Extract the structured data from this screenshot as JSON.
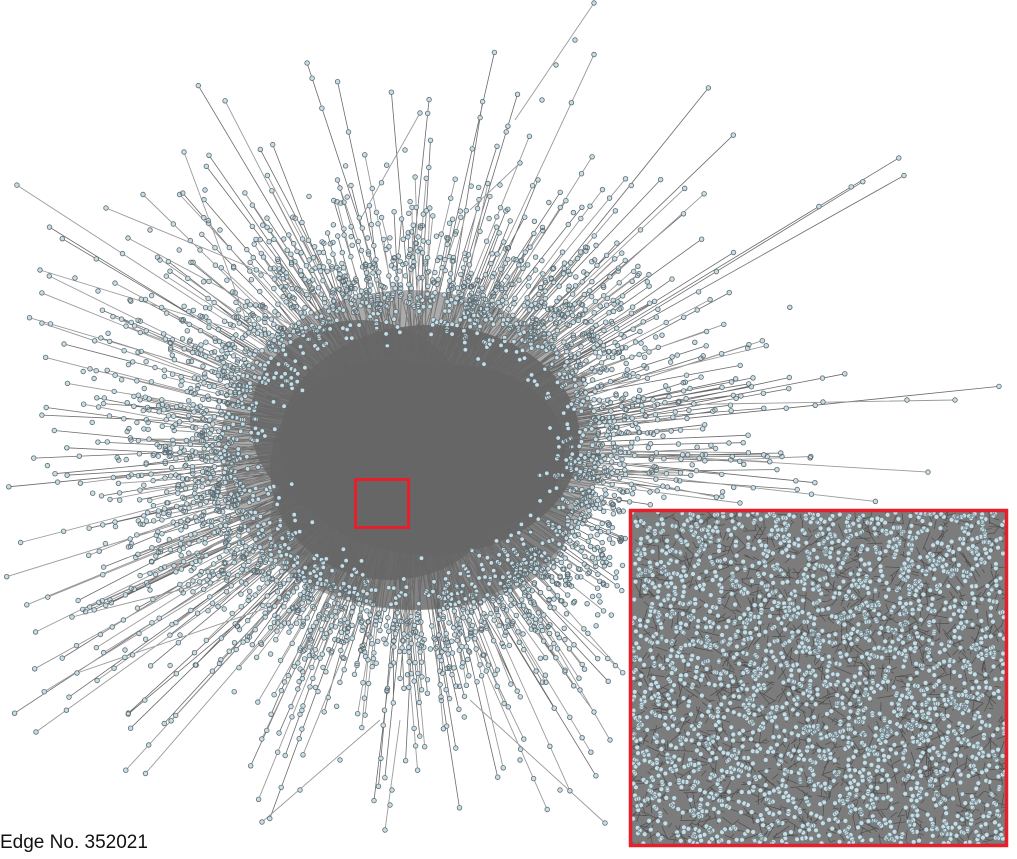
{
  "figure": {
    "caption": "Edge No. 352021",
    "colors": {
      "background": "#ffffff",
      "edge": "#6b6b6b",
      "edge_light": "#9a9a9a",
      "node_fill": "#c8dee6",
      "node_stroke": "#5f6b70",
      "core": "#666666",
      "highlight": "#e3202c",
      "inset_background": "#7c7c7c"
    }
  }
}
